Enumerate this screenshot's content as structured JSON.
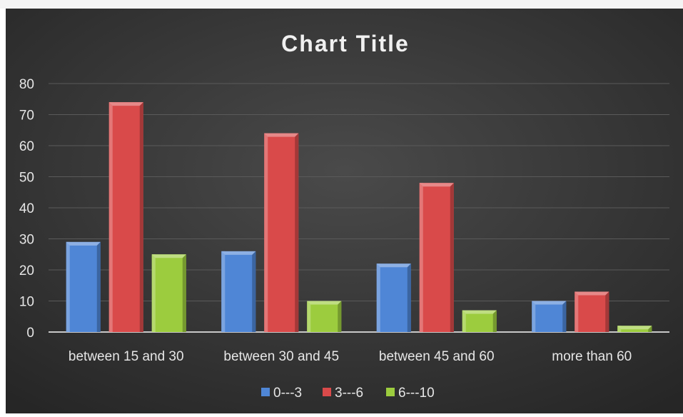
{
  "chart_data": {
    "type": "bar",
    "title": "Chart Title",
    "xlabel": "",
    "ylabel": "",
    "categories": [
      "between 15 and 30",
      "between 30 and 45",
      "between 45 and 60",
      "more than 60"
    ],
    "series": [
      {
        "name": "0---3",
        "values": [
          29,
          26,
          22,
          10
        ],
        "color": "#4f86d6"
      },
      {
        "name": "3---6",
        "values": [
          74,
          64,
          48,
          13
        ],
        "color": "#d94a4a"
      },
      {
        "name": "6---10",
        "values": [
          25,
          10,
          7,
          2
        ],
        "color": "#9ccc3e"
      }
    ],
    "ylim": [
      0,
      80
    ],
    "yticks": [
      0,
      10,
      20,
      30,
      40,
      50,
      60,
      70,
      80
    ],
    "grid": true,
    "legend": "bottom",
    "background": "#333333",
    "text_color": "#e6e6e6"
  }
}
